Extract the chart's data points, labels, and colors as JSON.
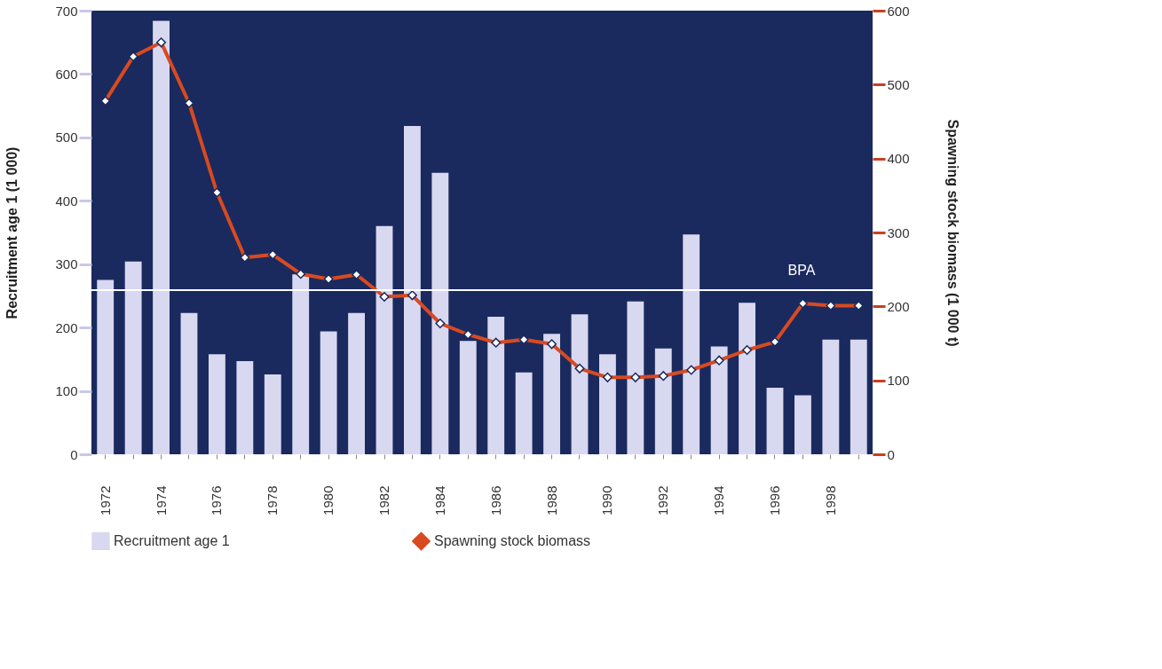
{
  "chart_data": {
    "type": "bar",
    "xlabel": null,
    "ylabel": "Recruitment age 1 (1 000)",
    "y2label": "Spawning stock biomass (1 000 t)",
    "categories": [
      "1972",
      null,
      "1974",
      null,
      "1976",
      null,
      "1978",
      null,
      "1980",
      null,
      "1982",
      null,
      "1984",
      null,
      "1986",
      null,
      "1988",
      null,
      "1990",
      null,
      "1992",
      null,
      "1994",
      null,
      "1996",
      null,
      "1998",
      null
    ],
    "series": [
      {
        "name": "Recruitment age 1",
        "color": "#d8d8f0",
        "values": [
          275,
          304,
          684,
          223,
          158,
          147,
          126,
          284,
          194,
          223,
          360,
          518,
          444,
          179,
          217,
          129,
          190,
          221,
          158,
          241,
          167,
          347,
          170,
          239,
          105,
          93,
          181,
          181
        ]
      },
      {
        "name": "Spawning stock biomass",
        "type": "line",
        "axis": "y2",
        "color": "#d84a20",
        "marker": "diamond",
        "values": [
          478,
          538,
          557,
          475,
          354,
          266,
          270,
          244,
          237,
          243,
          213,
          215,
          177,
          162,
          151,
          155,
          149,
          116,
          104,
          104,
          106,
          114,
          127,
          141,
          152,
          204,
          201,
          201
        ]
      }
    ],
    "ylim": [
      0,
      700
    ],
    "yticks": [
      0,
      100,
      200,
      300,
      400,
      500,
      600,
      700
    ],
    "y2lim": [
      0,
      600
    ],
    "y2ticks": [
      0,
      100,
      200,
      300,
      400,
      500,
      600
    ],
    "ref_lines": [
      {
        "axis": "y2",
        "value": 222,
        "label": "BPA",
        "color": "#ffffff"
      }
    ],
    "grid": false,
    "legend": "bottom"
  }
}
